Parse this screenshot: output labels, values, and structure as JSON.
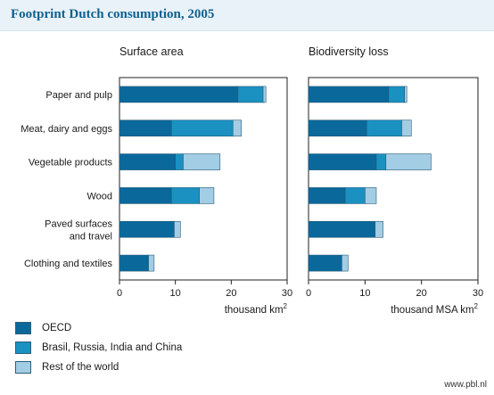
{
  "header": {
    "title": "Footprint Dutch consumption, 2005"
  },
  "legend": [
    {
      "label": "OECD",
      "color": "#0b689b"
    },
    {
      "label": "Brasil, Russia, India and China",
      "color": "#1a91c1"
    },
    {
      "label": "Rest of the world",
      "color": "#a3cde4"
    }
  ],
  "footer": {
    "credit": "www.pbl.nl"
  },
  "chart_data": [
    {
      "type": "bar",
      "orientation": "horizontal",
      "stacked": true,
      "title": "Surface area",
      "xlabel": "thousand km²",
      "xlim": [
        0,
        30
      ],
      "xticks": [
        0,
        10,
        20,
        30
      ],
      "categories": [
        "Paper and pulp",
        "Meat, dairy and eggs",
        "Vegetable products",
        "Wood",
        "Paved  surfaces|and travel",
        "Clothing and textiles"
      ],
      "series": [
        {
          "name": "OECD",
          "values": [
            21.2,
            9.3,
            10.0,
            9.3,
            9.8,
            5.2
          ]
        },
        {
          "name": "Brasil, Russia, India and China",
          "values": [
            4.5,
            11.0,
            1.4,
            5.0,
            0,
            0
          ]
        },
        {
          "name": "Rest of the world",
          "values": [
            0.5,
            1.5,
            6.6,
            2.6,
            1.1,
            1.0
          ]
        }
      ]
    },
    {
      "type": "bar",
      "orientation": "horizontal",
      "stacked": true,
      "title": "Biodiversity loss",
      "xlabel": "thousand MSA km²",
      "xlim": [
        0,
        30
      ],
      "xticks": [
        0,
        10,
        20,
        30
      ],
      "categories": [
        "Paper and pulp",
        "Meat, dairy and eggs",
        "Vegetable products",
        "Wood",
        "Paved  surfaces|and travel",
        "Clothing and textiles"
      ],
      "series": [
        {
          "name": "OECD",
          "values": [
            14.2,
            10.3,
            12.0,
            6.5,
            11.8,
            5.9
          ]
        },
        {
          "name": "Brasil, Russia, India and China",
          "values": [
            2.8,
            6.2,
            1.7,
            3.5,
            0,
            0
          ]
        },
        {
          "name": "Rest of the world",
          "values": [
            0.4,
            1.7,
            8.0,
            2.0,
            1.4,
            1.1
          ]
        }
      ]
    }
  ]
}
